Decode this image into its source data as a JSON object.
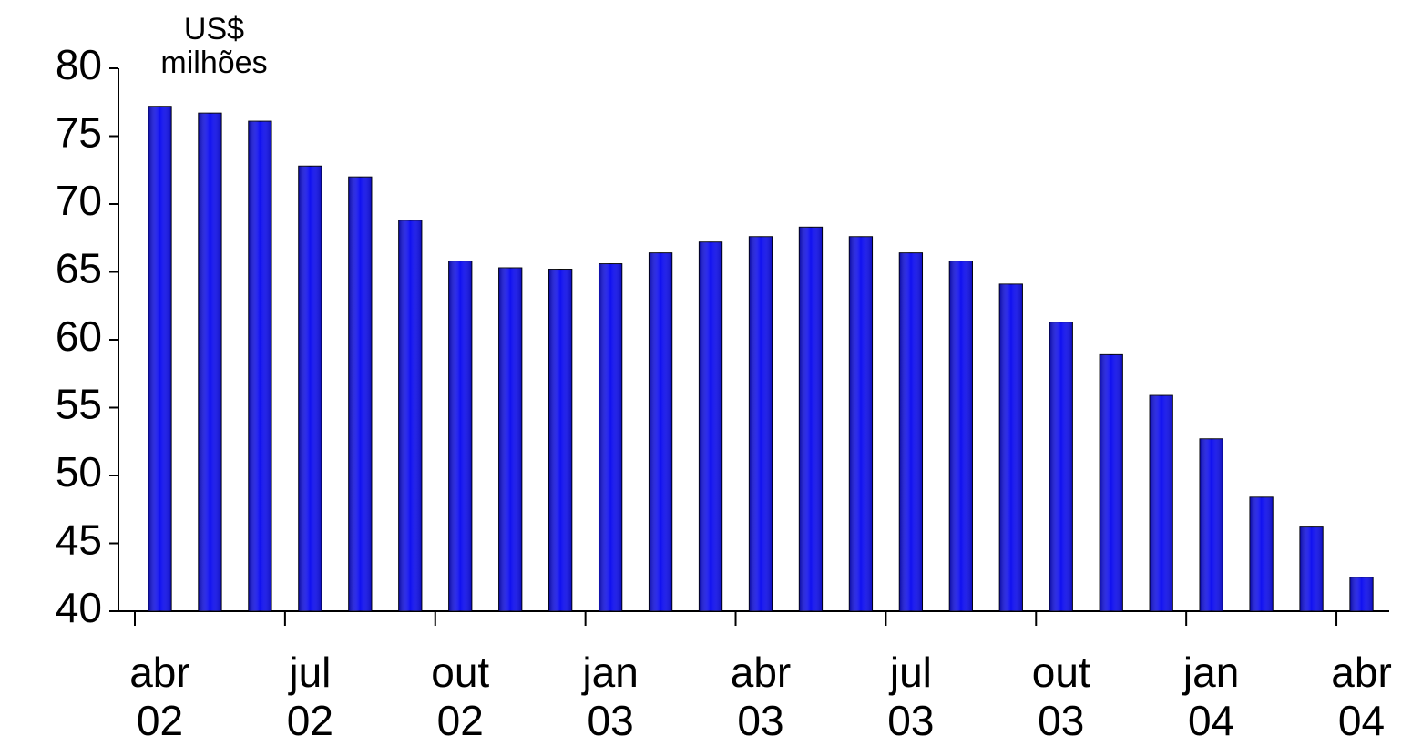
{
  "chart_data": {
    "type": "bar",
    "y_unit": "US$ milhões",
    "categories": [
      "abr 02",
      null,
      null,
      "jul 02",
      null,
      null,
      "out 02",
      null,
      null,
      "jan 03",
      null,
      null,
      "abr 03",
      null,
      null,
      "jul 03",
      null,
      null,
      "out 03",
      null,
      null,
      "jan 04",
      null,
      null,
      "abr 04"
    ],
    "values": [
      77.2,
      76.7,
      76.1,
      72.8,
      72.0,
      68.8,
      65.8,
      65.3,
      65.2,
      65.6,
      66.4,
      67.2,
      67.6,
      68.3,
      67.6,
      66.4,
      65.8,
      64.1,
      61.3,
      58.9,
      55.9,
      52.7,
      48.4,
      46.2,
      42.5
    ],
    "color": "#1010f0",
    "ylim": [
      40,
      80
    ],
    "yticks": [
      40,
      45,
      50,
      55,
      60,
      65,
      70,
      75,
      80
    ],
    "grid": false
  }
}
